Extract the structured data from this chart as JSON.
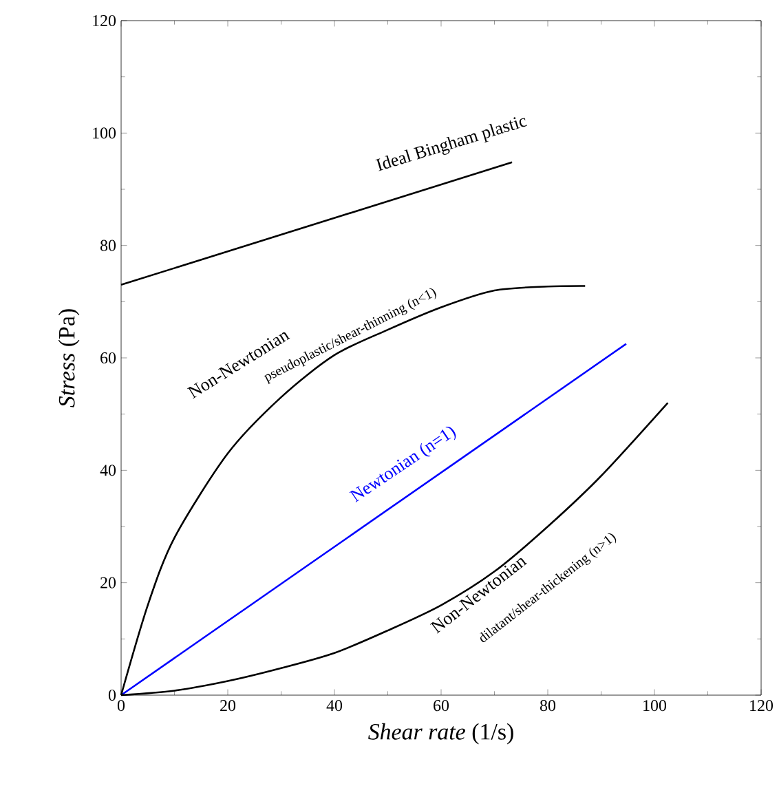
{
  "chart_data": {
    "type": "line",
    "xlabel": "*Shear rate* (1/s)",
    "ylabel": "*Stress* (Pa)",
    "xlim": [
      0,
      120
    ],
    "ylim": [
      0,
      120
    ],
    "xticks": [
      0,
      20,
      40,
      60,
      80,
      100,
      120
    ],
    "yticks": [
      0,
      20,
      40,
      60,
      80,
      100,
      120
    ],
    "grid": false,
    "marker": "none",
    "line_style": "solid",
    "series": [
      {
        "color": "#000000",
        "x": [
          0,
          73.3
        ],
        "values": [
          73,
          94.8
        ]
      },
      {
        "color": "#0000ff",
        "x": [
          0,
          94.7
        ],
        "values": [
          0,
          62.5
        ]
      },
      {
        "color": "#000000",
        "x": [
          0,
          5,
          10,
          20,
          30,
          40,
          50,
          60,
          70,
          80,
          87
        ],
        "values": [
          0,
          16,
          28,
          43,
          53,
          60.5,
          65,
          69,
          72,
          72.7,
          72.8
        ]
      },
      {
        "color": "#000000",
        "x": [
          0,
          10,
          20,
          30,
          40,
          50,
          60,
          70,
          80,
          90,
          102.5
        ],
        "values": [
          0,
          0.8,
          2.5,
          4.8,
          7.5,
          11.5,
          16,
          22,
          30,
          39,
          52
        ]
      }
    ],
    "annotations": [
      "Ideal Bingham plastic",
      "Non-Newtonian",
      "pseudoplastic/shear-thinning (n<1)",
      "Newtonian (n=1)",
      "Non-Newtonian",
      "dilatant/shear-thickening (n>1)"
    ]
  }
}
